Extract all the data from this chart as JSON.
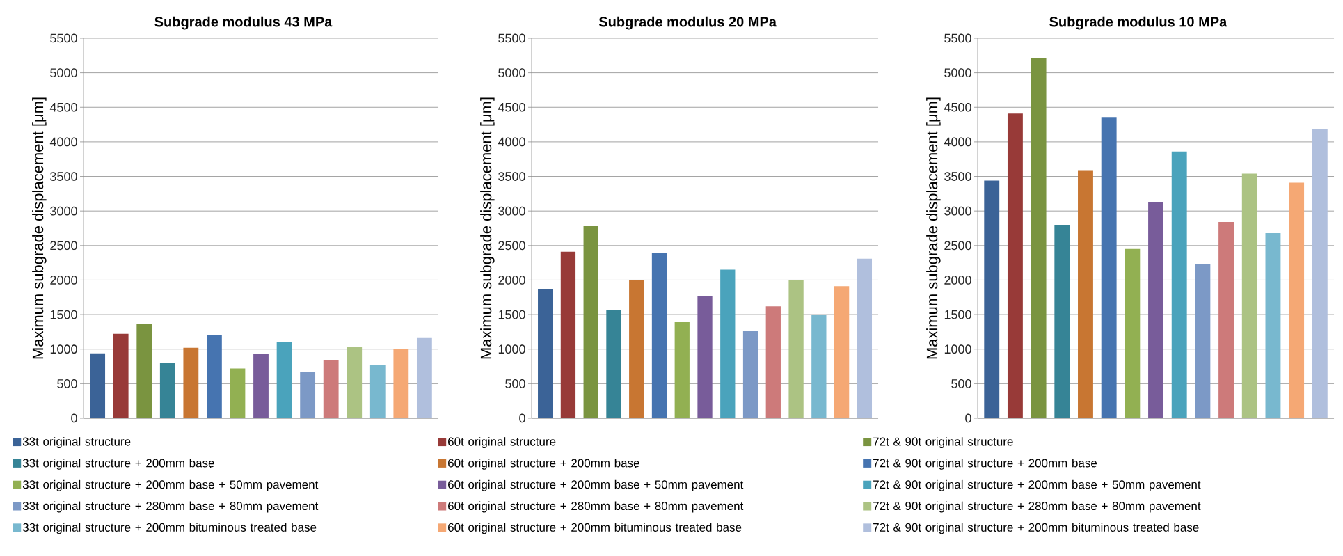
{
  "chart_data": [
    {
      "type": "bar",
      "title": "Subgrade modulus 43 MPa",
      "ylabel": "Maximum subgrade displacement [μm]",
      "categories": [
        null,
        null,
        null,
        null,
        null,
        null,
        null,
        null,
        null,
        null,
        null,
        null,
        null,
        null,
        null
      ],
      "ylim": [
        0,
        5500
      ],
      "yticks": [
        0,
        500,
        1000,
        1500,
        2000,
        2500,
        3000,
        3500,
        4000,
        4500,
        5000,
        5500
      ],
      "grid": "y",
      "legend": "bottom",
      "series": [
        {
          "name": "33t  original structure",
          "color": "#3b6397",
          "values": [
            940,
            null,
            null,
            null,
            null,
            null,
            null,
            null,
            null,
            null,
            null,
            null,
            null,
            null,
            null
          ]
        },
        {
          "name": "60t  original structure",
          "color": "#983a38",
          "values": [
            null,
            1220,
            null,
            null,
            null,
            null,
            null,
            null,
            null,
            null,
            null,
            null,
            null,
            null,
            null
          ]
        },
        {
          "name": "72t & 90t  original structure",
          "color": "#7a9440",
          "values": [
            null,
            null,
            1360,
            null,
            null,
            null,
            null,
            null,
            null,
            null,
            null,
            null,
            null,
            null,
            null
          ]
        },
        {
          "name": "33t  original structure + 200mm base",
          "color": "#368496",
          "values": [
            null,
            null,
            null,
            800,
            null,
            null,
            null,
            null,
            null,
            null,
            null,
            null,
            null,
            null,
            null
          ]
        },
        {
          "name": "60t  original structure + 200mm base",
          "color": "#c87632",
          "values": [
            null,
            null,
            null,
            null,
            1020,
            null,
            null,
            null,
            null,
            null,
            null,
            null,
            null,
            null,
            null
          ]
        },
        {
          "name": "72t & 90t  original structure + 200mm base",
          "color": "#4674b0",
          "values": [
            null,
            null,
            null,
            null,
            null,
            1200,
            null,
            null,
            null,
            null,
            null,
            null,
            null,
            null,
            null
          ]
        },
        {
          "name": "33t  original structure + 200mm base + 50mm pavement",
          "color": "#92b052",
          "values": [
            null,
            null,
            null,
            null,
            null,
            null,
            720,
            null,
            null,
            null,
            null,
            null,
            null,
            null,
            null
          ]
        },
        {
          "name": "60t  original structure + 200mm base + 50mm pavement",
          "color": "#785c9a",
          "values": [
            null,
            null,
            null,
            null,
            null,
            null,
            null,
            930,
            null,
            null,
            null,
            null,
            null,
            null,
            null
          ]
        },
        {
          "name": "72t & 90t  original structure + 200mm base + 50mm pavement",
          "color": "#4aa3bc",
          "values": [
            null,
            null,
            null,
            null,
            null,
            null,
            null,
            null,
            1100,
            null,
            null,
            null,
            null,
            null,
            null
          ]
        },
        {
          "name": "33t  original structure + 280mm base + 80mm pavement",
          "color": "#7c99c6",
          "values": [
            null,
            null,
            null,
            null,
            null,
            null,
            null,
            null,
            null,
            670,
            null,
            null,
            null,
            null,
            null
          ]
        },
        {
          "name": "60t  original structure + 280mm base + 80mm pavement",
          "color": "#cd7a7a",
          "values": [
            null,
            null,
            null,
            null,
            null,
            null,
            null,
            null,
            null,
            null,
            840,
            null,
            null,
            null,
            null
          ]
        },
        {
          "name": "72t & 90t  original structure + 280mm base + 80mm pavement",
          "color": "#acc383",
          "values": [
            null,
            null,
            null,
            null,
            null,
            null,
            null,
            null,
            null,
            null,
            null,
            1030,
            null,
            null,
            null
          ]
        },
        {
          "name": "33t  original structure + 200mm bituminous treated base",
          "color": "#78b8cf",
          "values": [
            null,
            null,
            null,
            null,
            null,
            null,
            null,
            null,
            null,
            null,
            null,
            null,
            770,
            null,
            null
          ]
        },
        {
          "name": "60t  original structure + 200mm bituminous treated base",
          "color": "#f5a874",
          "values": [
            null,
            null,
            null,
            null,
            null,
            null,
            null,
            null,
            null,
            null,
            null,
            null,
            null,
            1000,
            null
          ]
        },
        {
          "name": "72t & 90t  original structure + 200mm bituminous treated base",
          "color": "#b0bfdd",
          "values": [
            null,
            null,
            null,
            null,
            null,
            null,
            null,
            null,
            null,
            null,
            null,
            null,
            null,
            null,
            1160
          ]
        }
      ]
    },
    {
      "type": "bar",
      "title": "Subgrade modulus 20 MPa",
      "ylabel": "Maximum subgrade displacement [μm]",
      "categories": [
        null,
        null,
        null,
        null,
        null,
        null,
        null,
        null,
        null,
        null,
        null,
        null,
        null,
        null,
        null
      ],
      "ylim": [
        0,
        5500
      ],
      "yticks": [
        0,
        500,
        1000,
        1500,
        2000,
        2500,
        3000,
        3500,
        4000,
        4500,
        5000,
        5500
      ],
      "grid": "y",
      "series": [
        {
          "color": "#3b6397",
          "values": [
            1870,
            null,
            null,
            null,
            null,
            null,
            null,
            null,
            null,
            null,
            null,
            null,
            null,
            null,
            null
          ]
        },
        {
          "color": "#983a38",
          "values": [
            null,
            2410,
            null,
            null,
            null,
            null,
            null,
            null,
            null,
            null,
            null,
            null,
            null,
            null,
            null
          ]
        },
        {
          "color": "#7a9440",
          "values": [
            null,
            null,
            2780,
            null,
            null,
            null,
            null,
            null,
            null,
            null,
            null,
            null,
            null,
            null,
            null
          ]
        },
        {
          "color": "#368496",
          "values": [
            null,
            null,
            null,
            1560,
            null,
            null,
            null,
            null,
            null,
            null,
            null,
            null,
            null,
            null,
            null
          ]
        },
        {
          "color": "#c87632",
          "values": [
            null,
            null,
            null,
            null,
            2000,
            null,
            null,
            null,
            null,
            null,
            null,
            null,
            null,
            null,
            null
          ]
        },
        {
          "color": "#4674b0",
          "values": [
            null,
            null,
            null,
            null,
            null,
            2390,
            null,
            null,
            null,
            null,
            null,
            null,
            null,
            null,
            null
          ]
        },
        {
          "color": "#92b052",
          "values": [
            null,
            null,
            null,
            null,
            null,
            null,
            1390,
            null,
            null,
            null,
            null,
            null,
            null,
            null,
            null
          ]
        },
        {
          "color": "#785c9a",
          "values": [
            null,
            null,
            null,
            null,
            null,
            null,
            null,
            1770,
            null,
            null,
            null,
            null,
            null,
            null,
            null
          ]
        },
        {
          "color": "#4aa3bc",
          "values": [
            null,
            null,
            null,
            null,
            null,
            null,
            null,
            null,
            2150,
            null,
            null,
            null,
            null,
            null,
            null
          ]
        },
        {
          "color": "#7c99c6",
          "values": [
            null,
            null,
            null,
            null,
            null,
            null,
            null,
            null,
            null,
            1260,
            null,
            null,
            null,
            null,
            null
          ]
        },
        {
          "color": "#cd7a7a",
          "values": [
            null,
            null,
            null,
            null,
            null,
            null,
            null,
            null,
            null,
            null,
            1620,
            null,
            null,
            null,
            null
          ]
        },
        {
          "color": "#acc383",
          "values": [
            null,
            null,
            null,
            null,
            null,
            null,
            null,
            null,
            null,
            null,
            null,
            2000,
            null,
            null,
            null
          ]
        },
        {
          "color": "#78b8cf",
          "values": [
            null,
            null,
            null,
            null,
            null,
            null,
            null,
            null,
            null,
            null,
            null,
            null,
            1490,
            null,
            null
          ]
        },
        {
          "color": "#f5a874",
          "values": [
            null,
            null,
            null,
            null,
            null,
            null,
            null,
            null,
            null,
            null,
            null,
            null,
            null,
            1910,
            null
          ]
        },
        {
          "color": "#b0bfdd",
          "values": [
            null,
            null,
            null,
            null,
            null,
            null,
            null,
            null,
            null,
            null,
            null,
            null,
            null,
            null,
            2310
          ]
        }
      ]
    },
    {
      "type": "bar",
      "title": "Subgrade modulus 10 MPa",
      "ylabel": "Maximum subgrade displacement [μm]",
      "categories": [
        null,
        null,
        null,
        null,
        null,
        null,
        null,
        null,
        null,
        null,
        null,
        null,
        null,
        null,
        null
      ],
      "ylim": [
        0,
        5500
      ],
      "yticks": [
        0,
        500,
        1000,
        1500,
        2000,
        2500,
        3000,
        3500,
        4000,
        4500,
        5000,
        5500
      ],
      "grid": "y",
      "series": [
        {
          "color": "#3b6397",
          "values": [
            3440,
            null,
            null,
            null,
            null,
            null,
            null,
            null,
            null,
            null,
            null,
            null,
            null,
            null,
            null
          ]
        },
        {
          "color": "#983a38",
          "values": [
            null,
            4410,
            null,
            null,
            null,
            null,
            null,
            null,
            null,
            null,
            null,
            null,
            null,
            null,
            null
          ]
        },
        {
          "color": "#7a9440",
          "values": [
            null,
            null,
            5210,
            null,
            null,
            null,
            null,
            null,
            null,
            null,
            null,
            null,
            null,
            null,
            null
          ]
        },
        {
          "color": "#368496",
          "values": [
            null,
            null,
            null,
            2790,
            null,
            null,
            null,
            null,
            null,
            null,
            null,
            null,
            null,
            null,
            null
          ]
        },
        {
          "color": "#c87632",
          "values": [
            null,
            null,
            null,
            null,
            3580,
            null,
            null,
            null,
            null,
            null,
            null,
            null,
            null,
            null,
            null
          ]
        },
        {
          "color": "#4674b0",
          "values": [
            null,
            null,
            null,
            null,
            null,
            4360,
            null,
            null,
            null,
            null,
            null,
            null,
            null,
            null,
            null
          ]
        },
        {
          "color": "#92b052",
          "values": [
            null,
            null,
            null,
            null,
            null,
            null,
            2450,
            null,
            null,
            null,
            null,
            null,
            null,
            null,
            null
          ]
        },
        {
          "color": "#785c9a",
          "values": [
            null,
            null,
            null,
            null,
            null,
            null,
            null,
            3130,
            null,
            null,
            null,
            null,
            null,
            null,
            null
          ]
        },
        {
          "color": "#4aa3bc",
          "values": [
            null,
            null,
            null,
            null,
            null,
            null,
            null,
            null,
            3860,
            null,
            null,
            null,
            null,
            null,
            null
          ]
        },
        {
          "color": "#7c99c6",
          "values": [
            null,
            null,
            null,
            null,
            null,
            null,
            null,
            null,
            null,
            2230,
            null,
            null,
            null,
            null,
            null
          ]
        },
        {
          "color": "#cd7a7a",
          "values": [
            null,
            null,
            null,
            null,
            null,
            null,
            null,
            null,
            null,
            null,
            2840,
            null,
            null,
            null,
            null
          ]
        },
        {
          "color": "#acc383",
          "values": [
            null,
            null,
            null,
            null,
            null,
            null,
            null,
            null,
            null,
            null,
            null,
            3540,
            null,
            null,
            null
          ]
        },
        {
          "color": "#78b8cf",
          "values": [
            null,
            null,
            null,
            null,
            null,
            null,
            null,
            null,
            null,
            null,
            null,
            null,
            2680,
            null,
            null
          ]
        },
        {
          "color": "#f5a874",
          "values": [
            null,
            null,
            null,
            null,
            null,
            null,
            null,
            null,
            null,
            null,
            null,
            null,
            null,
            3410,
            null
          ]
        },
        {
          "color": "#b0bfdd",
          "values": [
            null,
            null,
            null,
            null,
            null,
            null,
            null,
            null,
            null,
            null,
            null,
            null,
            null,
            null,
            4180
          ]
        }
      ]
    }
  ]
}
